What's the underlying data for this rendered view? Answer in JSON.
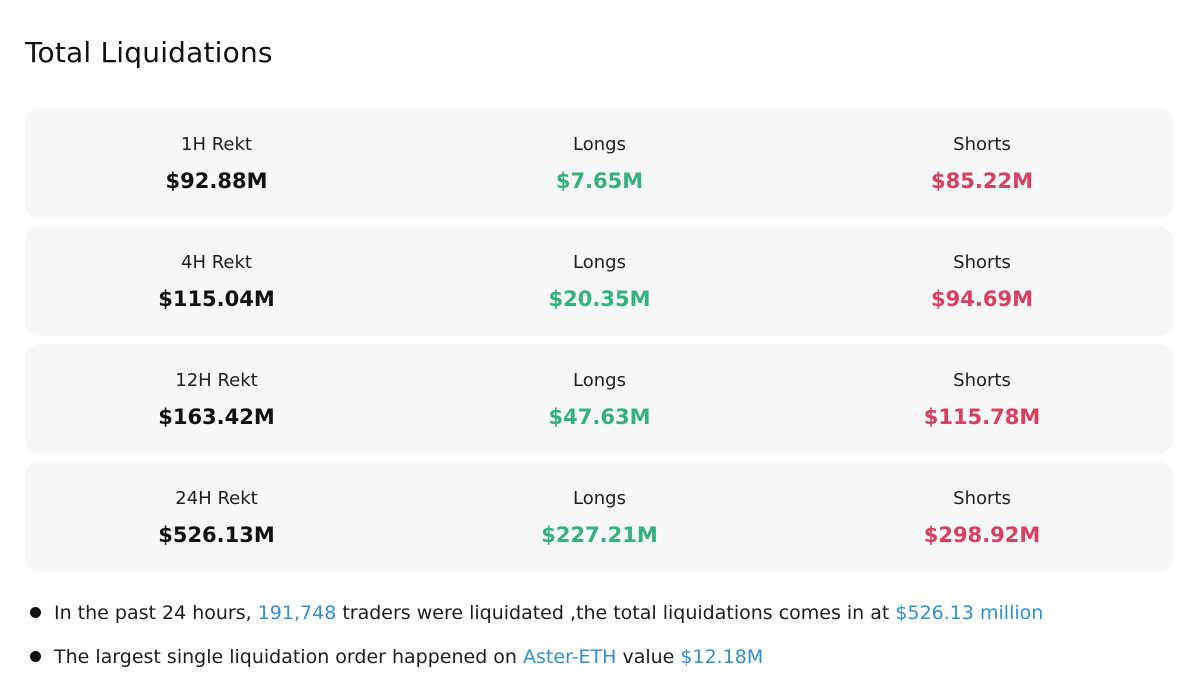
{
  "title": "Total Liquidations",
  "rows": [
    {
      "label": "1H Rekt",
      "total": "$92.88M",
      "longs_label": "Longs",
      "longs": "$7.65M",
      "shorts_label": "Shorts",
      "shorts": "$85.22M"
    },
    {
      "label": "4H Rekt",
      "total": "$115.04M",
      "longs_label": "Longs",
      "longs": "$20.35M",
      "shorts_label": "Shorts",
      "shorts": "$94.69M"
    },
    {
      "label": "12H Rekt",
      "total": "$163.42M",
      "longs_label": "Longs",
      "longs": "$47.63M",
      "shorts_label": "Shorts",
      "shorts": "$115.78M"
    },
    {
      "label": "24H Rekt",
      "total": "$526.13M",
      "longs_label": "Longs",
      "longs": "$227.21M",
      "shorts_label": "Shorts",
      "shorts": "$298.92M"
    }
  ],
  "notes": {
    "n1_prefix": "In the past 24 hours, ",
    "n1_traders": "191,748",
    "n1_mid": " traders were liquidated ,the total liquidations comes in at ",
    "n1_total": "$526.13 million",
    "n2_prefix": "The largest single liquidation order happened on ",
    "n2_pair": "Aster-ETH",
    "n2_mid": " value ",
    "n2_value": "$12.18M"
  },
  "colors": {
    "long": "#34b27a",
    "short": "#d9405e",
    "highlight": "#2f8fd6",
    "card_bg": "#f6f7f9"
  }
}
